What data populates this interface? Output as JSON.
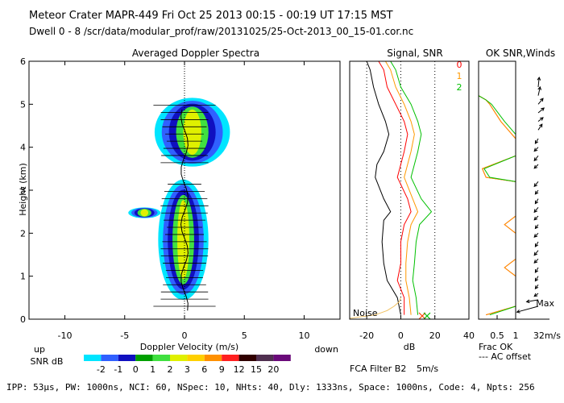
{
  "header": {
    "line1": "Meteor Crater   MAPR-449   Fri Oct 25 2013 00:15 - 00:19 UT 17:15 MST",
    "line2": "Dwell  0 -  8   /scr/data/modular_prof/raw/20131025/25-Oct-2013_00_15-01.cor.nc"
  },
  "footer": {
    "params": "IPP: 53µs,  PW: 1000ns,  NCI: 60,  NSpec: 10, NHts: 40,  Dly: 1333ns,  Space: 1000ns,  Code: 4,  Npts: 256"
  },
  "legend": {
    "label": "SNR dB",
    "ticks": [
      "-2",
      "-1",
      "0",
      "1",
      "2",
      "3",
      "6",
      "9",
      "12",
      "15",
      "20"
    ],
    "colors": [
      "#00e5ff",
      "#3060ff",
      "#1010c0",
      "#00a000",
      "#40e040",
      "#e0f000",
      "#ffd000",
      "#ff9000",
      "#ff2020",
      "#300000",
      "#503050",
      "#6a0a7a"
    ]
  },
  "chart_data": [
    {
      "type": "heatmap",
      "title": "Averaged Doppler Spectra",
      "xlabel": "Doppler Velocity (m/s)",
      "ylabel": "Height (km)",
      "xlim": [
        -13,
        13
      ],
      "ylim": [
        0,
        6
      ],
      "xticks": [
        "-10",
        "-5",
        "0",
        "5",
        "10"
      ],
      "yticks": [
        "0",
        "1",
        "2",
        "3",
        "4",
        "5",
        "6"
      ],
      "x_left_label": "up",
      "x_right_label": "down",
      "echo_regions": [
        {
          "height_km": [
            3.55,
            5.15
          ],
          "velocity_ms": [
            -2.5,
            3.8
          ],
          "peak_snr_db": 3
        },
        {
          "height_km": [
            0.45,
            3.25
          ],
          "velocity_ms": [
            -2.2,
            2.0
          ],
          "peak_snr_db": 3
        },
        {
          "height_km": [
            2.35,
            2.6
          ],
          "velocity_ms": [
            -4.7,
            -2.0
          ],
          "peak_snr_db": 3
        }
      ]
    },
    {
      "type": "line",
      "title": "Signal, SNR",
      "xlabel": "dB",
      "xlim": [
        -30,
        40
      ],
      "ylim": [
        0,
        6
      ],
      "xticks": [
        "-20",
        "0",
        "20",
        "40"
      ],
      "noise_label": "Noise",
      "series_labels": [
        "0",
        "1",
        "2"
      ],
      "series_colors": [
        "#ff0000",
        "#ff9900",
        "#00c000"
      ],
      "series": [
        {
          "name": "signal",
          "color": "#000000",
          "points": [
            [
              0,
              0.1
            ],
            [
              -2,
              0.5
            ],
            [
              -8,
              0.9
            ],
            [
              -10,
              1.3
            ],
            [
              -11,
              1.8
            ],
            [
              -10,
              2.3
            ],
            [
              -6,
              2.5
            ],
            [
              -10,
              2.8
            ],
            [
              -15,
              3.3
            ],
            [
              -14,
              3.6
            ],
            [
              -10,
              3.9
            ],
            [
              -7,
              4.3
            ],
            [
              -9,
              4.6
            ],
            [
              -13,
              5.0
            ],
            [
              -16,
              5.4
            ],
            [
              -18,
              5.8
            ],
            [
              -20,
              6.0
            ]
          ]
        },
        {
          "name": "0",
          "color": "#ff0000",
          "points": [
            [
              2,
              0.1
            ],
            [
              2,
              0.5
            ],
            [
              -2,
              0.9
            ],
            [
              0,
              1.3
            ],
            [
              0,
              1.8
            ],
            [
              2,
              2.2
            ],
            [
              6,
              2.5
            ],
            [
              4,
              2.8
            ],
            [
              -2,
              3.3
            ],
            [
              0,
              3.6
            ],
            [
              2,
              3.9
            ],
            [
              4,
              4.3
            ],
            [
              2,
              4.6
            ],
            [
              -3,
              5.0
            ],
            [
              -8,
              5.4
            ],
            [
              -10,
              5.8
            ],
            [
              -13,
              6.0
            ]
          ]
        },
        {
          "name": "1",
          "color": "#ff9900",
          "points": [
            [
              6,
              0.1
            ],
            [
              5,
              0.5
            ],
            [
              3,
              0.9
            ],
            [
              3,
              1.3
            ],
            [
              4,
              1.8
            ],
            [
              6,
              2.2
            ],
            [
              10,
              2.5
            ],
            [
              7,
              2.8
            ],
            [
              2,
              3.3
            ],
            [
              4,
              3.6
            ],
            [
              6,
              3.9
            ],
            [
              8,
              4.3
            ],
            [
              6,
              4.6
            ],
            [
              2,
              5.0
            ],
            [
              -3,
              5.4
            ],
            [
              -6,
              5.8
            ],
            [
              -9,
              6.0
            ]
          ]
        },
        {
          "name": "2",
          "color": "#00c000",
          "points": [
            [
              10,
              0.1
            ],
            [
              9,
              0.5
            ],
            [
              7,
              0.9
            ],
            [
              8,
              1.3
            ],
            [
              9,
              1.8
            ],
            [
              11,
              2.2
            ],
            [
              18,
              2.5
            ],
            [
              12,
              2.8
            ],
            [
              6,
              3.3
            ],
            [
              8,
              3.6
            ],
            [
              10,
              3.9
            ],
            [
              12,
              4.3
            ],
            [
              10,
              4.6
            ],
            [
              6,
              5.0
            ],
            [
              0,
              5.4
            ],
            [
              -3,
              5.8
            ],
            [
              -6,
              6.0
            ]
          ]
        },
        {
          "name": "noise",
          "color": "#f0c060",
          "points": [
            [
              -30,
              0.02
            ],
            [
              -15,
              0.1
            ],
            [
              -8,
              0.2
            ],
            [
              -4,
              0.3
            ],
            [
              -1,
              0.4
            ],
            [
              0,
              0.5
            ]
          ]
        }
      ]
    },
    {
      "type": "line",
      "title": "OK SNR,Winds",
      "xlabel": "Frac OK",
      "xlim": [
        0,
        1
      ],
      "ylim": [
        0,
        6
      ],
      "xticks": [
        "0.5",
        "1"
      ],
      "secondary_label": "--- AC offset",
      "series": [
        {
          "name": "0",
          "color": "#ff0000",
          "points": [
            [
              0.2,
              0.1
            ],
            [
              1,
              0.3
            ],
            [
              1,
              1.0
            ],
            [
              0.7,
              1.2
            ],
            [
              1,
              1.4
            ],
            [
              1,
              2.0
            ],
            [
              0.7,
              2.2
            ],
            [
              1,
              2.4
            ],
            [
              1,
              3.2
            ],
            [
              0.2,
              3.3
            ],
            [
              0.1,
              3.5
            ],
            [
              1,
              3.8
            ],
            [
              1,
              4.2
            ],
            [
              0.6,
              4.6
            ],
            [
              0.3,
              5.0
            ],
            [
              0.2,
              5.1
            ],
            [
              0,
              5.2
            ]
          ]
        },
        {
          "name": "1",
          "color": "#ff9900",
          "points": [
            [
              0.2,
              0.1
            ],
            [
              1,
              0.3
            ],
            [
              1,
              1.0
            ],
            [
              0.7,
              1.2
            ],
            [
              1,
              1.4
            ],
            [
              1,
              2.0
            ],
            [
              0.7,
              2.2
            ],
            [
              1,
              2.4
            ],
            [
              1,
              3.2
            ],
            [
              0.2,
              3.3
            ],
            [
              0.1,
              3.5
            ],
            [
              1,
              3.8
            ],
            [
              1,
              4.2
            ],
            [
              0.6,
              4.6
            ],
            [
              0.3,
              5.0
            ],
            [
              0.2,
              5.1
            ],
            [
              0,
              5.2
            ]
          ]
        },
        {
          "name": "2",
          "color": "#00c000",
          "points": [
            [
              0.3,
              0.1
            ],
            [
              1,
              0.3
            ],
            [
              1,
              3.2
            ],
            [
              0.3,
              3.3
            ],
            [
              0.15,
              3.5
            ],
            [
              1,
              3.8
            ],
            [
              1,
              4.3
            ],
            [
              0.7,
              4.6
            ],
            [
              0.35,
              5.0
            ],
            [
              0.2,
              5.1
            ],
            [
              0,
              5.2
            ]
          ]
        }
      ]
    },
    {
      "type": "wind_barbs",
      "title": "Winds",
      "max_label": "Max",
      "max_speed": "32m/s",
      "vectors": [
        {
          "height_km": 0.3,
          "u_ms": -22,
          "v_ms": -6
        },
        {
          "height_km": 0.45,
          "u_ms": -12,
          "v_ms": -2
        },
        {
          "height_km": 0.6,
          "u_ms": -4,
          "v_ms": -3
        },
        {
          "height_km": 0.8,
          "u_ms": -3,
          "v_ms": -4
        },
        {
          "height_km": 1.0,
          "u_ms": -3,
          "v_ms": -5
        },
        {
          "height_km": 1.2,
          "u_ms": -3,
          "v_ms": -5
        },
        {
          "height_km": 1.4,
          "u_ms": -4,
          "v_ms": -4
        },
        {
          "height_km": 1.6,
          "u_ms": -4,
          "v_ms": -5
        },
        {
          "height_km": 1.8,
          "u_ms": -3,
          "v_ms": -5
        },
        {
          "height_km": 2.0,
          "u_ms": -4,
          "v_ms": -4
        },
        {
          "height_km": 2.2,
          "u_ms": -3,
          "v_ms": -4
        },
        {
          "height_km": 2.4,
          "u_ms": -4,
          "v_ms": -4
        },
        {
          "height_km": 2.6,
          "u_ms": -4,
          "v_ms": -5
        },
        {
          "height_km": 2.8,
          "u_ms": -3,
          "v_ms": -5
        },
        {
          "height_km": 3.0,
          "u_ms": -3,
          "v_ms": -4
        },
        {
          "height_km": 3.2,
          "u_ms": -4,
          "v_ms": -5
        },
        {
          "height_km": 3.6,
          "u_ms": -4,
          "v_ms": -4
        },
        {
          "height_km": 3.8,
          "u_ms": -4,
          "v_ms": -5
        },
        {
          "height_km": 4.0,
          "u_ms": -4,
          "v_ms": -4
        },
        {
          "height_km": 4.2,
          "u_ms": -3,
          "v_ms": -5
        },
        {
          "height_km": 4.4,
          "u_ms": 4,
          "v_ms": 6
        },
        {
          "height_km": 4.6,
          "u_ms": 5,
          "v_ms": 4
        },
        {
          "height_km": 4.8,
          "u_ms": 6,
          "v_ms": 5
        },
        {
          "height_km": 5.0,
          "u_ms": 5,
          "v_ms": 6
        },
        {
          "height_km": 5.2,
          "u_ms": 2,
          "v_ms": 9
        },
        {
          "height_km": 5.4,
          "u_ms": 1,
          "v_ms": 10
        }
      ]
    }
  ],
  "filter_info": {
    "filter": "FCA Filter B2",
    "speed": "5m/s"
  }
}
